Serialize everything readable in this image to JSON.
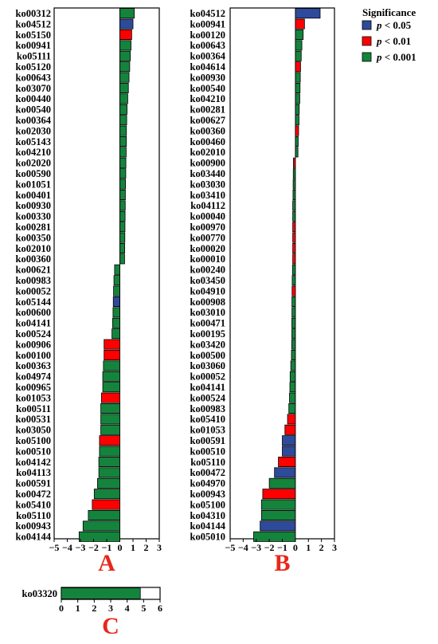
{
  "legend": {
    "title": "Significance",
    "entries": [
      {
        "p": "p",
        "rest": " < 0.05",
        "color": "#2e4a9a"
      },
      {
        "p": "p",
        "rest": " < 0.01",
        "color": "#ff0000"
      },
      {
        "p": "p",
        "rest": " < 0.001",
        "color": "#14843c"
      }
    ]
  },
  "chart_data": [
    {
      "type": "bar",
      "orientation": "horizontal",
      "panel_label": "A",
      "xlim": [
        -5,
        3
      ],
      "x_ticks": [
        -5,
        -4,
        -3,
        -2,
        -1,
        0,
        1,
        2,
        3
      ],
      "categories": [
        "ko00312",
        "ko04512",
        "ko05150",
        "ko00941",
        "ko05111",
        "ko05120",
        "ko00643",
        "ko03070",
        "ko00440",
        "ko00540",
        "ko00364",
        "ko02030",
        "ko05143",
        "ko04210",
        "ko02020",
        "ko00590",
        "ko01051",
        "ko00401",
        "ko00930",
        "ko00330",
        "ko00281",
        "ko00350",
        "ko02010",
        "ko00360",
        "ko00621",
        "ko00983",
        "ko00052",
        "ko05144",
        "ko00600",
        "ko04141",
        "ko00524",
        "ko00906",
        "ko00100",
        "ko00363",
        "ko04974",
        "ko00965",
        "ko01053",
        "ko00511",
        "ko00531",
        "ko03050",
        "ko05100",
        "ko00510",
        "ko04142",
        "ko04113",
        "ko00591",
        "ko00472",
        "ko05410",
        "ko05110",
        "ko00943",
        "ko04144"
      ],
      "values": [
        1.1,
        1.0,
        0.9,
        0.85,
        0.8,
        0.75,
        0.7,
        0.65,
        0.6,
        0.55,
        0.52,
        0.5,
        0.5,
        0.48,
        0.46,
        0.45,
        0.43,
        0.42,
        0.41,
        0.4,
        0.39,
        0.38,
        0.37,
        0.36,
        -0.4,
        -0.45,
        -0.48,
        -0.5,
        -0.52,
        -0.55,
        -0.6,
        -1.2,
        -1.2,
        -1.25,
        -1.3,
        -1.3,
        -1.4,
        -1.45,
        -1.45,
        -1.45,
        -1.55,
        -1.55,
        -1.6,
        -1.6,
        -1.7,
        -1.95,
        -2.1,
        -2.4,
        -2.8,
        -3.1
      ],
      "significance": [
        "p<0.001",
        "p<0.05",
        "p<0.01",
        "p<0.001",
        "p<0.001",
        "p<0.001",
        "p<0.001",
        "p<0.001",
        "p<0.001",
        "p<0.001",
        "p<0.001",
        "p<0.001",
        "p<0.001",
        "p<0.001",
        "p<0.001",
        "p<0.001",
        "p<0.001",
        "p<0.001",
        "p<0.001",
        "p<0.001",
        "p<0.001",
        "p<0.001",
        "p<0.001",
        "p<0.001",
        "p<0.001",
        "p<0.001",
        "p<0.001",
        "p<0.05",
        "p<0.001",
        "p<0.001",
        "p<0.001",
        "p<0.01",
        "p<0.01",
        "p<0.001",
        "p<0.001",
        "p<0.001",
        "p<0.01",
        "p<0.001",
        "p<0.001",
        "p<0.001",
        "p<0.01",
        "p<0.001",
        "p<0.001",
        "p<0.001",
        "p<0.001",
        "p<0.001",
        "p<0.01",
        "p<0.001",
        "p<0.001",
        "p<0.001"
      ]
    },
    {
      "type": "bar",
      "orientation": "horizontal",
      "panel_label": "B",
      "xlim": [
        -5,
        3
      ],
      "x_ticks": [
        -5,
        -4,
        -3,
        -2,
        -1,
        0,
        1,
        2,
        3
      ],
      "categories": [
        "ko04512",
        "ko00941",
        "ko00120",
        "ko00643",
        "ko00364",
        "ko04614",
        "ko00930",
        "ko00540",
        "ko04210",
        "ko00281",
        "ko00627",
        "ko00360",
        "ko00460",
        "ko02010",
        "ko00900",
        "ko03440",
        "ko03030",
        "ko03410",
        "ko04112",
        "ko00040",
        "ko00970",
        "ko00770",
        "ko00020",
        "ko00010",
        "ko00240",
        "ko03450",
        "ko04910",
        "ko00908",
        "ko03010",
        "ko00471",
        "ko00195",
        "ko03420",
        "ko00500",
        "ko03060",
        "ko00052",
        "ko04141",
        "ko00524",
        "ko00983",
        "ko05410",
        "ko01053",
        "ko00591",
        "ko00510",
        "ko05110",
        "ko00472",
        "ko04970",
        "ko00943",
        "ko05100",
        "ko04310",
        "ko04144",
        "ko05010"
      ],
      "values": [
        1.9,
        0.7,
        0.6,
        0.5,
        0.45,
        0.4,
        0.38,
        0.36,
        0.34,
        0.3,
        0.28,
        0.25,
        0.22,
        0.2,
        -0.15,
        -0.16,
        -0.17,
        -0.18,
        -0.2,
        -0.2,
        -0.2,
        -0.2,
        -0.2,
        -0.2,
        -0.22,
        -0.24,
        -0.25,
        -0.26,
        -0.26,
        -0.27,
        -0.27,
        -0.28,
        -0.3,
        -0.35,
        -0.4,
        -0.42,
        -0.45,
        -0.5,
        -0.6,
        -0.8,
        -1.0,
        -1.0,
        -1.3,
        -1.6,
        -2.0,
        -2.5,
        -2.6,
        -2.6,
        -2.7,
        -3.2
      ],
      "significance": [
        "p<0.05",
        "p<0.01",
        "p<0.001",
        "p<0.001",
        "p<0.001",
        "p<0.01",
        "p<0.001",
        "p<0.001",
        "p<0.001",
        "p<0.001",
        "p<0.001",
        "p<0.01",
        "p<0.001",
        "p<0.001",
        "p<0.01",
        "p<0.001",
        "p<0.001",
        "p<0.001",
        "p<0.001",
        "p<0.001",
        "p<0.01",
        "p<0.01",
        "p<0.01",
        "p<0.01",
        "p<0.001",
        "p<0.001",
        "p<0.01",
        "p<0.001",
        "p<0.001",
        "p<0.001",
        "p<0.001",
        "p<0.001",
        "p<0.001",
        "p<0.001",
        "p<0.001",
        "p<0.001",
        "p<0.001",
        "p<0.001",
        "p<0.01",
        "p<0.01",
        "p<0.05",
        "p<0.05",
        "p<0.01",
        "p<0.05",
        "p<0.001",
        "p<0.01",
        "p<0.001",
        "p<0.001",
        "p<0.05",
        "p<0.001"
      ]
    },
    {
      "type": "bar",
      "orientation": "horizontal",
      "panel_label": "C",
      "xlim": [
        0,
        6
      ],
      "x_ticks": [
        0,
        1,
        2,
        3,
        4,
        5,
        6
      ],
      "categories": [
        "ko03320"
      ],
      "values": [
        4.8
      ],
      "significance": [
        "p<0.001"
      ]
    }
  ]
}
